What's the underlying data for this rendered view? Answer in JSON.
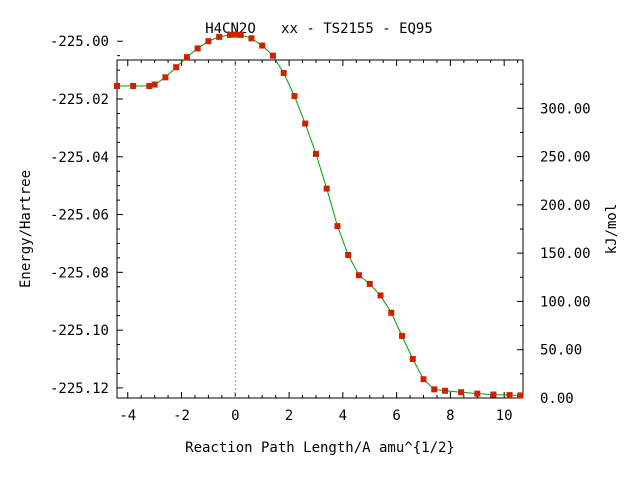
{
  "chart_data": {
    "type": "line",
    "title": "H4CN2O   xx - TS2155 - EQ95",
    "xlabel": "Reaction Path Length/A amu^{1/2}",
    "ylabel": "Energy/Hartree",
    "y2label": "kJ/mol",
    "xlim": [
      -4.4,
      10.7
    ],
    "ylim": [
      -225.1235,
      -225.0065
    ],
    "y2lim": [
      0,
      350
    ],
    "x_ticks": [
      -4,
      -2,
      0,
      2,
      4,
      6,
      8,
      10
    ],
    "x_tick_labels": [
      "-4",
      "-2",
      "0",
      "2",
      "4",
      "6",
      "8",
      "10"
    ],
    "y_ticks": [
      -225.0,
      -225.02,
      -225.04,
      -225.06,
      -225.08,
      -225.1,
      -225.12
    ],
    "y_tick_labels": [
      "-225.00",
      "-225.02",
      "-225.04",
      "-225.06",
      "-225.08",
      "-225.10",
      "-225.12"
    ],
    "y2_ticks": [
      0,
      50,
      100,
      150,
      200,
      250,
      300
    ],
    "y2_tick_labels": [
      "0.00",
      "50.00",
      "100.00",
      "150.00",
      "200.00",
      "250.00",
      "300.00"
    ],
    "ts_marker_x": 0,
    "grid": false,
    "colors": {
      "line": "#00a000",
      "marker": "#cc2200",
      "ts_line": "#999999",
      "axis": "#000000"
    },
    "series": [
      {
        "x": [
          -4.4,
          -3.8,
          -3.2,
          -3.0,
          -2.6,
          -2.2,
          -1.8,
          -1.4,
          -1.0,
          -0.6,
          -0.2,
          0.0,
          0.2,
          0.6,
          1.0,
          1.4,
          1.8,
          2.2,
          2.6,
          3.0,
          3.4,
          3.8,
          4.2,
          4.6,
          5.0,
          5.4,
          5.8,
          6.2,
          6.6,
          7.0,
          7.4,
          7.8,
          8.4,
          9.0,
          9.6,
          10.2,
          10.6
        ],
        "y": [
          -225.0155,
          -225.0155,
          -225.0155,
          -225.015,
          -225.0125,
          -225.009,
          -225.0055,
          -225.0025,
          -225.0,
          -224.9985,
          -224.9978,
          -224.9977,
          -224.9978,
          -224.999,
          -225.0015,
          -225.005,
          -225.011,
          -225.019,
          -225.0285,
          -225.039,
          -225.051,
          -225.064,
          -225.074,
          -225.081,
          -225.084,
          -225.088,
          -225.094,
          -225.102,
          -225.11,
          -225.117,
          -225.1205,
          -225.121,
          -225.1215,
          -225.122,
          -225.1223,
          -225.1225,
          -225.1226
        ]
      }
    ]
  }
}
